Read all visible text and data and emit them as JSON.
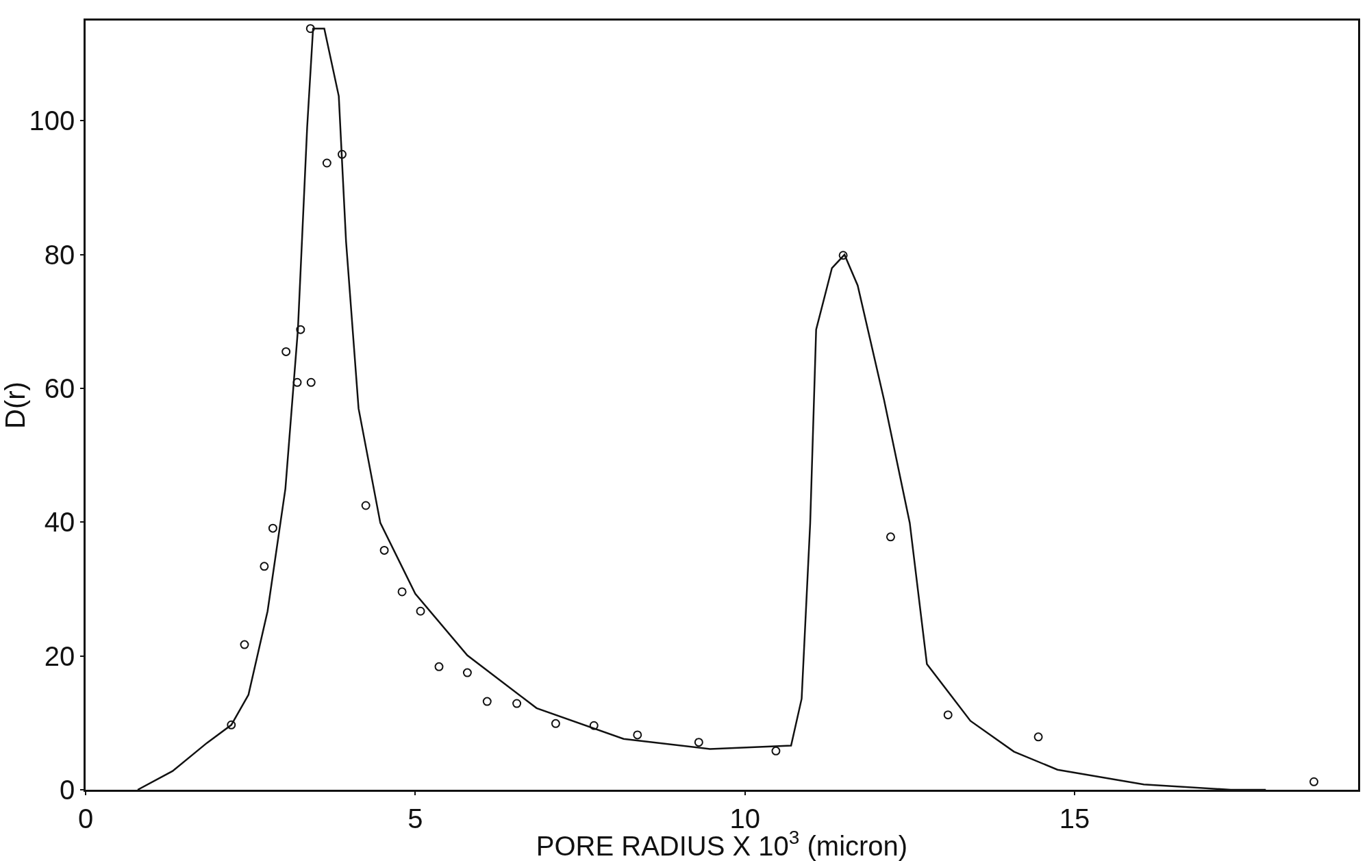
{
  "chart_data": {
    "type": "scatter",
    "xlabel": "PORE RADIUS X 10$^{3}$ (micron)",
    "ylabel": "D(r)",
    "xlim": [
      0,
      19.3
    ],
    "ylim": [
      0,
      115
    ],
    "xticks": [
      0,
      5,
      10,
      15
    ],
    "yticks": [
      0,
      20,
      40,
      60,
      80,
      100
    ],
    "legend": false,
    "series": [
      {
        "marker": "circle",
        "color": "#111111",
        "x": [
          2.21,
          2.41,
          2.71,
          2.84,
          3.04,
          3.21,
          3.26,
          3.42,
          3.41,
          3.66,
          3.89,
          4.25,
          4.53,
          4.8,
          5.08,
          5.36,
          5.79,
          6.09,
          6.54,
          7.13,
          7.71,
          8.37,
          9.3,
          10.47,
          11.49,
          12.21,
          13.08,
          14.45,
          18.63
        ],
        "values": [
          9.7,
          21.7,
          33.4,
          39.1,
          65.5,
          60.9,
          68.8,
          60.9,
          113.8,
          93.7,
          95,
          42.5,
          35.8,
          29.6,
          26.7,
          18.4,
          17.5,
          13.2,
          12.9,
          9.9,
          9.6,
          8.2,
          7.1,
          5.8,
          79.9,
          37.8,
          11.2,
          7.9,
          1.2
        ]
      },
      {
        "type": "line",
        "marker": "none",
        "color": "#111111",
        "line_style": "solid",
        "x": [
          0.79,
          1.32,
          1.84,
          2.21,
          2.47,
          2.76,
          3.03,
          3.22,
          3.36,
          3.45,
          3.62,
          3.84,
          3.95,
          4.14,
          4.47,
          5.0,
          5.79,
          6.84,
          8.16,
          9.47,
          10.7,
          10.86,
          10.99,
          11.08,
          11.32,
          11.51,
          11.71,
          12.11,
          12.5,
          12.76,
          13.42,
          14.08,
          14.74,
          16.05,
          17.37,
          17.9
        ],
        "values": [
          0,
          2.8,
          7,
          9.7,
          14.2,
          26.7,
          45,
          68.8,
          99,
          113.8,
          113.8,
          103.7,
          82,
          57,
          39.9,
          29.3,
          20.1,
          12.2,
          7.6,
          6.1,
          6.6,
          13.6,
          39.9,
          68.8,
          78,
          80,
          75.4,
          58.3,
          39.9,
          18.8,
          10.3,
          5.7,
          3,
          0.8,
          0,
          0
        ]
      }
    ]
  }
}
